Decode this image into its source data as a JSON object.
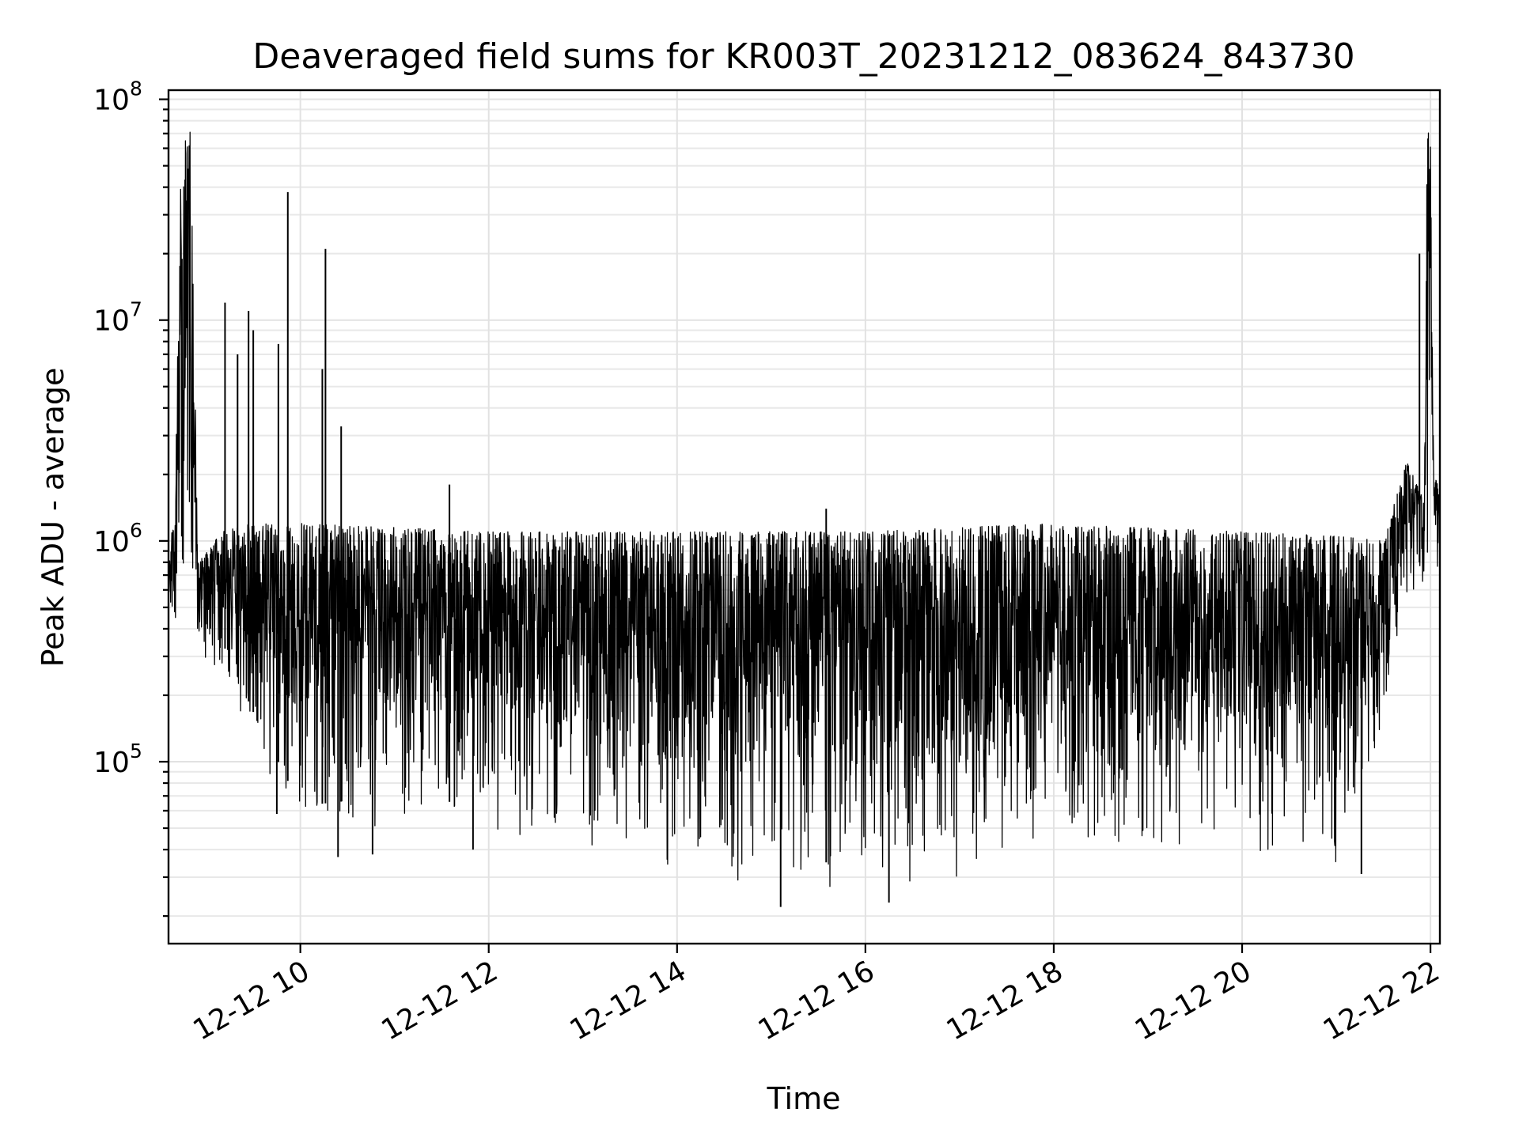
{
  "chart_data": {
    "type": "line",
    "title": "Deaveraged field sums for KR003T_20231212_083624_843730",
    "xlabel": "Time",
    "ylabel": "Peak ADU - average",
    "yscale": "log",
    "grid": true,
    "x_type": "time",
    "xlim": [
      "2023-12-12T08:36",
      "2023-12-12T22:06"
    ],
    "ylim": [
      15000,
      110000000
    ],
    "x_ticks": [
      {
        "t": "2023-12-12T10:00",
        "label": "12-12 10"
      },
      {
        "t": "2023-12-12T12:00",
        "label": "12-12 12"
      },
      {
        "t": "2023-12-12T14:00",
        "label": "12-12 14"
      },
      {
        "t": "2023-12-12T16:00",
        "label": "12-12 16"
      },
      {
        "t": "2023-12-12T18:00",
        "label": "12-12 18"
      },
      {
        "t": "2023-12-12T20:00",
        "label": "12-12 20"
      },
      {
        "t": "2023-12-12T22:00",
        "label": "12-12 22"
      }
    ],
    "y_ticks": [
      {
        "value": 100000,
        "base": "10",
        "exp": "5"
      },
      {
        "value": 1000000,
        "base": "10",
        "exp": "6"
      },
      {
        "value": 10000000,
        "base": "10",
        "exp": "7"
      },
      {
        "value": 100000000,
        "base": "10",
        "exp": "8"
      }
    ],
    "series": [
      {
        "color": "#000000",
        "envelope": [
          {
            "t": "2023-12-12T08:36",
            "lo": 420000,
            "hi": 900000
          },
          {
            "t": "2023-12-12T08:40",
            "lo": 350000,
            "hi": 1300000
          },
          {
            "t": "2023-12-12T08:44",
            "lo": 600000,
            "hi": 60000000
          },
          {
            "t": "2023-12-12T08:50",
            "lo": 650000,
            "hi": 72000000
          },
          {
            "t": "2023-12-12T08:55",
            "lo": 300000,
            "hi": 800000
          },
          {
            "t": "2023-12-12T09:10",
            "lo": 250000,
            "hi": 1100000
          },
          {
            "t": "2023-12-12T09:30",
            "lo": 120000,
            "hi": 1200000
          },
          {
            "t": "2023-12-12T10:00",
            "lo": 45000,
            "hi": 1200000
          },
          {
            "t": "2023-12-12T11:00",
            "lo": 50000,
            "hi": 1150000
          },
          {
            "t": "2023-12-12T12:00",
            "lo": 45000,
            "hi": 1100000
          },
          {
            "t": "2023-12-12T13:00",
            "lo": 35000,
            "hi": 1100000
          },
          {
            "t": "2023-12-12T14:00",
            "lo": 32000,
            "hi": 1100000
          },
          {
            "t": "2023-12-12T15:00",
            "lo": 25000,
            "hi": 1100000
          },
          {
            "t": "2023-12-12T16:00",
            "lo": 25000,
            "hi": 1100000
          },
          {
            "t": "2023-12-12T17:00",
            "lo": 28000,
            "hi": 1150000
          },
          {
            "t": "2023-12-12T18:00",
            "lo": 45000,
            "hi": 1200000
          },
          {
            "t": "2023-12-12T19:00",
            "lo": 35000,
            "hi": 1150000
          },
          {
            "t": "2023-12-12T20:00",
            "lo": 38000,
            "hi": 1100000
          },
          {
            "t": "2023-12-12T21:00",
            "lo": 35000,
            "hi": 1050000
          },
          {
            "t": "2023-12-12T21:30",
            "lo": 120000,
            "hi": 1000000
          },
          {
            "t": "2023-12-12T21:45",
            "lo": 500000,
            "hi": 2300000
          },
          {
            "t": "2023-12-12T21:56",
            "lo": 600000,
            "hi": 1500000
          },
          {
            "t": "2023-12-12T21:58",
            "lo": 700000,
            "hi": 75000000
          },
          {
            "t": "2023-12-12T22:00",
            "lo": 800000,
            "hi": 65000000
          },
          {
            "t": "2023-12-12T22:02",
            "lo": 600000,
            "hi": 2000000
          },
          {
            "t": "2023-12-12T22:06",
            "lo": 600000,
            "hi": 1700000
          }
        ],
        "spikes": [
          {
            "t": "2023-12-12T09:12",
            "value": 12000000
          },
          {
            "t": "2023-12-12T09:20",
            "value": 7000000
          },
          {
            "t": "2023-12-12T09:27",
            "value": 11000000
          },
          {
            "t": "2023-12-12T09:30",
            "value": 9000000
          },
          {
            "t": "2023-12-12T09:46",
            "value": 7800000
          },
          {
            "t": "2023-12-12T09:52",
            "value": 38000000
          },
          {
            "t": "2023-12-12T10:14",
            "value": 6000000
          },
          {
            "t": "2023-12-12T10:16",
            "value": 21000000
          },
          {
            "t": "2023-12-12T10:26",
            "value": 3300000
          },
          {
            "t": "2023-12-12T11:35",
            "value": 1800000
          },
          {
            "t": "2023-12-12T15:35",
            "value": 1400000
          },
          {
            "t": "2023-12-12T21:53",
            "value": 20000000
          }
        ],
        "dips": [
          {
            "t": "2023-12-12T09:45",
            "value": 58000
          },
          {
            "t": "2023-12-12T10:24",
            "value": 37000
          },
          {
            "t": "2023-12-12T10:46",
            "value": 38000
          },
          {
            "t": "2023-12-12T11:50",
            "value": 40000
          },
          {
            "t": "2023-12-12T15:06",
            "value": 22000
          },
          {
            "t": "2023-12-12T16:15",
            "value": 23000
          },
          {
            "t": "2023-12-12T21:16",
            "value": 31000
          }
        ]
      }
    ]
  }
}
